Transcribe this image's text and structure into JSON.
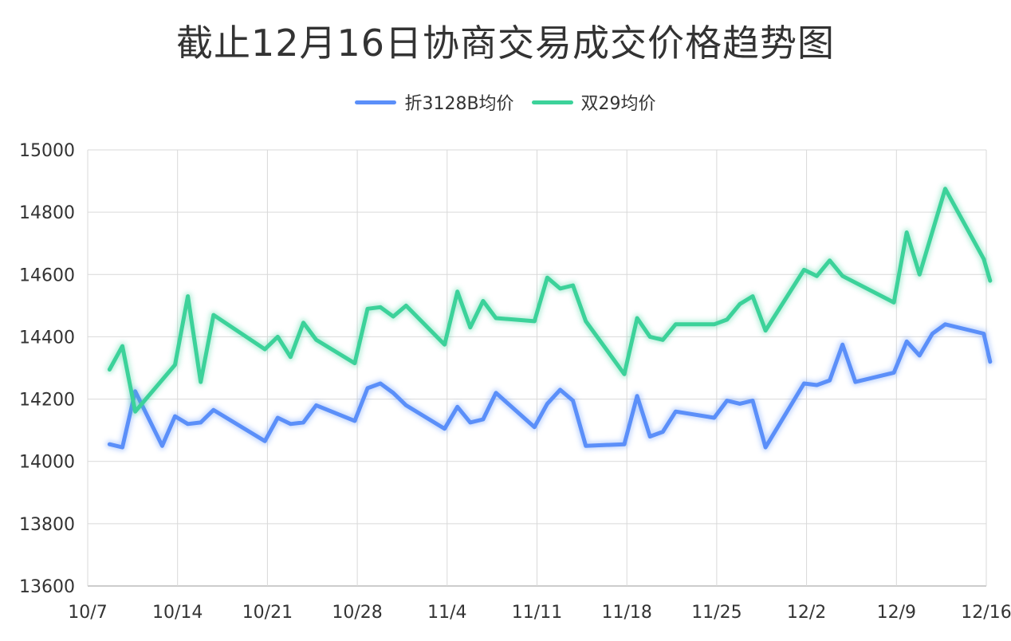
{
  "chart_data": {
    "type": "line",
    "title": "截止12月16日协商交易成交价格趋势图",
    "xlabel": "",
    "ylabel": "",
    "ylim": [
      13600,
      15000
    ],
    "yticks": [
      "13600",
      "13800",
      "14000",
      "14200",
      "14400",
      "14600",
      "14800",
      "15000"
    ],
    "xlim": [
      0,
      70
    ],
    "xticks": [
      {
        "label": "10/7",
        "day": 0
      },
      {
        "label": "10/14",
        "day": 7
      },
      {
        "label": "10/21",
        "day": 14
      },
      {
        "label": "10/28",
        "day": 21
      },
      {
        "label": "11/4",
        "day": 28
      },
      {
        "label": "11/11",
        "day": 35
      },
      {
        "label": "11/18",
        "day": 42
      },
      {
        "label": "11/25",
        "day": 49
      },
      {
        "label": "12/2",
        "day": 56
      },
      {
        "label": "12/9",
        "day": 63
      },
      {
        "label": "12/16",
        "day": 70
      }
    ],
    "grid": true,
    "legend_position": "top-center",
    "series": [
      {
        "name": "折3128B均价",
        "color": "#5b8ff9",
        "points": [
          [
            1.7,
            14055
          ],
          [
            2.7,
            14045
          ],
          [
            3.7,
            14225
          ],
          [
            5.8,
            14050
          ],
          [
            6.8,
            14145
          ],
          [
            7.8,
            14120
          ],
          [
            8.8,
            14125
          ],
          [
            9.8,
            14165
          ],
          [
            13.8,
            14065
          ],
          [
            14.8,
            14140
          ],
          [
            15.8,
            14120
          ],
          [
            16.8,
            14125
          ],
          [
            17.8,
            14180
          ],
          [
            20.8,
            14130
          ],
          [
            21.8,
            14235
          ],
          [
            22.8,
            14250
          ],
          [
            23.8,
            14220
          ],
          [
            24.8,
            14180
          ],
          [
            27.8,
            14105
          ],
          [
            28.8,
            14175
          ],
          [
            29.8,
            14125
          ],
          [
            30.8,
            14135
          ],
          [
            31.8,
            14220
          ],
          [
            34.8,
            14110
          ],
          [
            35.8,
            14185
          ],
          [
            36.8,
            14230
          ],
          [
            37.8,
            14195
          ],
          [
            38.8,
            14050
          ],
          [
            41.8,
            14055
          ],
          [
            42.8,
            14210
          ],
          [
            43.8,
            14080
          ],
          [
            44.8,
            14095
          ],
          [
            45.8,
            14160
          ],
          [
            48.8,
            14140
          ],
          [
            49.8,
            14195
          ],
          [
            50.8,
            14185
          ],
          [
            51.8,
            14195
          ],
          [
            52.8,
            14045
          ],
          [
            55.8,
            14250
          ],
          [
            56.8,
            14245
          ],
          [
            57.8,
            14260
          ],
          [
            58.8,
            14375
          ],
          [
            59.8,
            14255
          ],
          [
            62.8,
            14285
          ],
          [
            63.8,
            14385
          ],
          [
            64.8,
            14340
          ],
          [
            65.8,
            14410
          ],
          [
            66.8,
            14440
          ],
          [
            69.8,
            14410
          ],
          [
            70.3,
            14320
          ]
        ]
      },
      {
        "name": "双29均价",
        "color": "#3cd29a",
        "points": [
          [
            1.7,
            14295
          ],
          [
            2.7,
            14370
          ],
          [
            3.7,
            14160
          ],
          [
            6.8,
            14310
          ],
          [
            7.8,
            14530
          ],
          [
            8.8,
            14255
          ],
          [
            9.8,
            14470
          ],
          [
            13.8,
            14360
          ],
          [
            14.8,
            14400
          ],
          [
            15.8,
            14335
          ],
          [
            16.8,
            14445
          ],
          [
            17.8,
            14390
          ],
          [
            20.8,
            14315
          ],
          [
            21.8,
            14490
          ],
          [
            22.8,
            14495
          ],
          [
            23.8,
            14465
          ],
          [
            24.8,
            14500
          ],
          [
            27.8,
            14375
          ],
          [
            28.8,
            14545
          ],
          [
            29.8,
            14430
          ],
          [
            30.8,
            14515
          ],
          [
            31.8,
            14460
          ],
          [
            34.8,
            14450
          ],
          [
            35.8,
            14590
          ],
          [
            36.8,
            14555
          ],
          [
            37.8,
            14565
          ],
          [
            38.8,
            14450
          ],
          [
            41.8,
            14280
          ],
          [
            42.8,
            14460
          ],
          [
            43.8,
            14400
          ],
          [
            44.8,
            14390
          ],
          [
            45.8,
            14440
          ],
          [
            48.8,
            14440
          ],
          [
            49.8,
            14455
          ],
          [
            50.8,
            14505
          ],
          [
            51.8,
            14530
          ],
          [
            52.8,
            14420
          ],
          [
            55.8,
            14615
          ],
          [
            56.8,
            14595
          ],
          [
            57.8,
            14645
          ],
          [
            58.8,
            14595
          ],
          [
            62.8,
            14510
          ],
          [
            63.8,
            14735
          ],
          [
            64.8,
            14600
          ],
          [
            66.8,
            14875
          ],
          [
            69.8,
            14650
          ],
          [
            70.3,
            14580
          ]
        ]
      }
    ]
  }
}
